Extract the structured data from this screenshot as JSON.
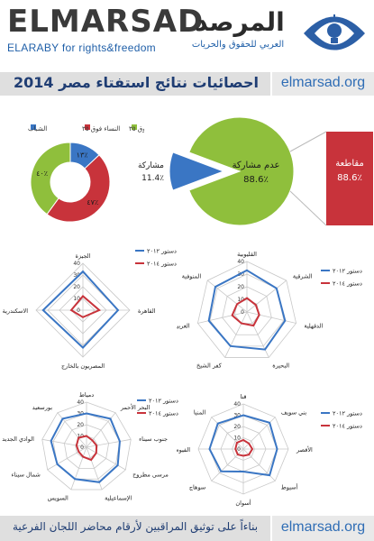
{
  "header": {
    "brand_en": "ELMARSAD",
    "brand_en_sub": "ELARABY for rights&freedom",
    "brand_ar": "المرصد",
    "brand_ar_sub": "العربي للحقوق والحريات",
    "logo_icon": "eye-lightbulb-icon"
  },
  "title": "احصائيات نتائج استفتاء مصر 2014",
  "site": "elmarsad.org",
  "footer": {
    "text": "بناءاً على توثيق المراقبين لأرقام محاضر اللجان الفرعية",
    "site": "elmarsad.org"
  },
  "colors": {
    "blue": "#3a76c4",
    "red": "#c8333b",
    "green": "#8fbf3c",
    "grey": "#999999"
  },
  "chart_data": [
    {
      "type": "pie",
      "variant": "donut",
      "legend": [
        "الرجال فوق ٣٥",
        "النساء فوق ٣٥",
        "الشباب"
      ],
      "slices": [
        {
          "name": "الشباب",
          "value": 13,
          "label": "١٣٪",
          "color": "#3a76c4"
        },
        {
          "name": "النساء فوق ٣٥",
          "value": 47,
          "label": "٤٧٪",
          "color": "#c8333b"
        },
        {
          "name": "الرجال فوق ٣٥",
          "value": 40,
          "label": "٤٠٪",
          "color": "#8fbf3c"
        }
      ]
    },
    {
      "type": "pie",
      "slices": [
        {
          "name": "مشاركة",
          "value": 11.4,
          "label": "11.4٪",
          "color": "#3a76c4"
        },
        {
          "name": "عدم مشاركة",
          "value": 88.6,
          "label": "88.6٪",
          "color": "#8fbf3c"
        }
      ],
      "side_box": {
        "name": "مقاطعة",
        "value": 88.6,
        "label": "88.6٪",
        "color": "#c8333b"
      }
    },
    {
      "type": "radar",
      "rmax": 40,
      "ticks": [
        "0",
        "10",
        "20",
        "30",
        "40"
      ],
      "axes": [
        "القليوبية",
        "الشرقية",
        "الدقهلية",
        "البحيرة",
        "كفر الشيخ",
        "الغربية",
        "المنوفية"
      ],
      "series": [
        {
          "name": "دستور ٢٠١٢",
          "color": "#3a76c4",
          "values": [
            33,
            30,
            31,
            33,
            30,
            31,
            32
          ]
        },
        {
          "name": "دستور ٢٠١٤",
          "color": "#c8333b",
          "values": [
            11,
            9,
            10,
            12,
            10,
            12,
            10
          ]
        }
      ]
    },
    {
      "type": "radar",
      "rmax": 40,
      "ticks": [
        "0",
        "10",
        "20",
        "30",
        "40"
      ],
      "axes": [
        "الجيزة",
        "القاهرة",
        "المصريون بالخارج",
        "الاسكندرية"
      ],
      "series": [
        {
          "name": "دستور ٢٠١٢",
          "color": "#3a76c4",
          "values": [
            33,
            30,
            32,
            34
          ]
        },
        {
          "name": "دستور ٢٠١٤",
          "color": "#c8333b",
          "values": [
            12,
            14,
            6,
            10
          ]
        }
      ]
    },
    {
      "type": "radar",
      "rmax": 40,
      "ticks": [
        "0",
        "10",
        "20",
        "30",
        "40"
      ],
      "axes": [
        "قنا",
        "بني سويف",
        "الأقصر",
        "أسيوط",
        "أسوان",
        "سوهاج",
        "الفيوم",
        "المنيا"
      ],
      "series": [
        {
          "name": "دستور ٢٠١٢",
          "color": "#3a76c4",
          "values": [
            30,
            33,
            30,
            33,
            20,
            28,
            30,
            32
          ]
        },
        {
          "name": "دستور ٢٠١٤",
          "color": "#c8333b",
          "values": [
            8,
            7,
            8,
            7,
            6,
            7,
            7,
            8
          ]
        }
      ]
    },
    {
      "type": "radar",
      "rmax": 40,
      "ticks": [
        "0",
        "10",
        "20",
        "30",
        "40"
      ],
      "axes": [
        "دمياط",
        "البحر الأحمر",
        "جنوب سيناء",
        "مرسى مطروح",
        "الإسماعيلية",
        "السويس",
        "شمال سيناء",
        "الوادي الجديد",
        "بورسعيد"
      ],
      "series": [
        {
          "name": "دستور ٢٠١٢",
          "color": "#3a76c4",
          "values": [
            30,
            33,
            30,
            32,
            33,
            30,
            30,
            32,
            33
          ]
        },
        {
          "name": "دستور ٢٠١٤",
          "color": "#c8333b",
          "values": [
            10,
            8,
            9,
            10,
            12,
            9,
            8,
            9,
            11
          ]
        }
      ]
    }
  ]
}
